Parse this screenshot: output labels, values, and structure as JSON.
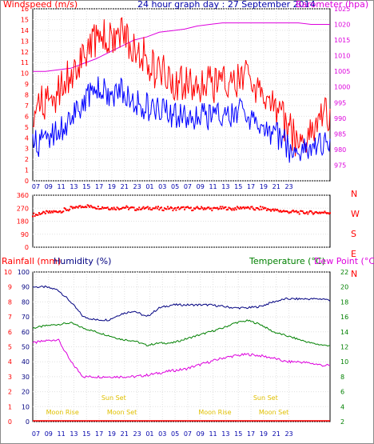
{
  "chart_data": [
    {
      "type": "line",
      "title": "24 hour graph day : 27 September 2014",
      "ylabel": "Windspeed (m/s)",
      "y2label": "Barometer (hpa)",
      "ylim": [
        0,
        16
      ],
      "y2lim": [
        970,
        1025
      ],
      "x_tick_labels": [
        "07",
        "09",
        "11",
        "13",
        "15",
        "17",
        "19",
        "21",
        "23",
        "01",
        "03",
        "05",
        "07",
        "09",
        "11",
        "13",
        "15",
        "17",
        "19",
        "21",
        "23"
      ],
      "y_tick_labels": [
        "0",
        "1",
        "2",
        "3",
        "4",
        "5",
        "6",
        "7",
        "8",
        "9",
        "10",
        "11",
        "12",
        "13",
        "14",
        "15",
        "16"
      ],
      "y2_tick_labels": [
        "975",
        "980",
        "985",
        "990",
        "995",
        "1000",
        "1005",
        "1010",
        "1015",
        "1020",
        "1025"
      ],
      "colors": {
        "gust": "#ff0000",
        "average": "#0000ff",
        "barometer": "#dd00dd"
      },
      "series": [
        {
          "key": "gust",
          "hours": [
            0,
            1,
            2,
            3,
            4,
            5,
            6,
            7,
            8,
            9,
            10,
            11,
            12,
            13,
            14,
            15,
            16,
            17,
            18,
            19,
            20,
            21,
            22,
            23,
            24,
            25,
            26,
            27,
            28,
            29,
            30,
            31,
            32,
            33,
            34,
            35,
            36,
            37,
            38,
            39,
            40,
            41,
            42,
            43,
            44,
            45,
            46,
            47
          ],
          "values": [
            6.5,
            7,
            7.5,
            7,
            8,
            9,
            10,
            10.5,
            11.5,
            12.5,
            13,
            13.5,
            13,
            13.5,
            14,
            13,
            12.5,
            12,
            11.5,
            10.5,
            10,
            10,
            9,
            9,
            9,
            9,
            9,
            9,
            9,
            9,
            9,
            9,
            9,
            9.5,
            9.5,
            9,
            8,
            7.5,
            7,
            6.5,
            5,
            4.5,
            3.5,
            3.5,
            4.5,
            5.5,
            6,
            6
          ]
        },
        {
          "key": "average",
          "hours": [
            0,
            1,
            2,
            3,
            4,
            5,
            6,
            7,
            8,
            9,
            10,
            11,
            12,
            13,
            14,
            15,
            16,
            17,
            18,
            19,
            20,
            21,
            22,
            23,
            24,
            25,
            26,
            27,
            28,
            29,
            30,
            31,
            32,
            33,
            34,
            35,
            36,
            37,
            38,
            39,
            40,
            41,
            42,
            43,
            44,
            45,
            46,
            47
          ],
          "values": [
            3.5,
            3.5,
            4,
            4,
            4.5,
            5,
            6,
            6.5,
            7,
            8,
            8.5,
            8.5,
            8,
            8,
            8.5,
            8,
            7.5,
            7,
            7,
            6.5,
            6.5,
            7,
            6,
            6,
            6,
            6,
            6,
            6,
            6,
            6,
            6,
            6,
            6,
            6.5,
            6,
            5.5,
            5,
            4.5,
            4.5,
            4,
            3.5,
            2.5,
            2.5,
            3,
            3,
            3,
            3.5,
            3.5
          ]
        },
        {
          "key": "barometer",
          "hours": [
            0,
            2,
            4,
            6,
            8,
            10,
            12,
            14,
            16,
            18,
            20,
            22,
            24,
            26,
            28,
            30,
            32,
            34,
            36,
            38,
            40,
            42,
            44,
            46,
            47
          ],
          "values": [
            1005,
            1005,
            1005.5,
            1006,
            1007.5,
            1009,
            1011,
            1013,
            1015,
            1016,
            1017.5,
            1018,
            1018.5,
            1019.5,
            1020,
            1020.5,
            1020.5,
            1020.5,
            1020.5,
            1020.5,
            1020.5,
            1020.5,
            1020,
            1020,
            1020
          ]
        }
      ]
    },
    {
      "type": "scatter",
      "ylabel_letters": [
        "N",
        "W",
        "S",
        "E",
        "N"
      ],
      "ylim": [
        0,
        360
      ],
      "y_tick_labels": [
        "0",
        "90",
        "180",
        "270",
        "360"
      ],
      "color": "#ff0000",
      "series": [
        {
          "key": "direction",
          "hours": [
            0,
            1,
            2,
            3,
            4,
            5,
            6,
            7,
            8,
            9,
            10,
            11,
            12,
            13,
            14,
            15,
            16,
            17,
            18,
            19,
            20,
            21,
            22,
            23,
            24,
            25,
            26,
            27,
            28,
            29,
            30,
            31,
            32,
            33,
            34,
            35,
            36,
            37,
            38,
            39,
            40,
            41,
            42,
            43,
            44,
            45,
            46,
            47
          ],
          "values": [
            225,
            235,
            240,
            245,
            250,
            260,
            270,
            280,
            285,
            280,
            275,
            275,
            270,
            270,
            275,
            270,
            265,
            270,
            270,
            270,
            265,
            270,
            265,
            270,
            270,
            265,
            270,
            270,
            265,
            270,
            270,
            265,
            270,
            275,
            270,
            265,
            270,
            260,
            255,
            250,
            245,
            245,
            240,
            240,
            240,
            240,
            240,
            240
          ]
        }
      ]
    },
    {
      "type": "line",
      "ylabel": "Rainfall (mm)",
      "ylabel2": "Humidity (%)",
      "y2label": "Temperature (°C)",
      "y2label2": "Dew Point (°C)",
      "ylim": [
        0,
        100
      ],
      "rain_ylim": [
        0,
        10
      ],
      "y2lim": [
        2,
        22
      ],
      "humidity_tick_labels": [
        "0",
        "10",
        "20",
        "30",
        "40",
        "50",
        "60",
        "70",
        "80",
        "90",
        "100"
      ],
      "rain_tick_labels": [
        "0",
        "1",
        "2",
        "3",
        "4",
        "5",
        "6",
        "7",
        "8",
        "9",
        "10"
      ],
      "temp_tick_labels": [
        "2",
        "4",
        "6",
        "8",
        "10",
        "12",
        "14",
        "16",
        "18",
        "20",
        "22"
      ],
      "colors": {
        "humidity": "#000080",
        "temperature": "#008000",
        "dewpoint": "#dd00dd",
        "rain": "#ff0000",
        "events": "#e0c000"
      },
      "series": [
        {
          "key": "humidity",
          "hours": [
            0,
            2,
            4,
            6,
            8,
            10,
            12,
            14,
            16,
            18,
            20,
            22,
            24,
            26,
            28,
            30,
            32,
            34,
            36,
            38,
            40,
            42,
            44,
            46,
            47
          ],
          "values": [
            90,
            90,
            88,
            80,
            70,
            68,
            68,
            72,
            74,
            70,
            76,
            78,
            78,
            78,
            78,
            77,
            76,
            76,
            77,
            80,
            82,
            82,
            82,
            82,
            81
          ]
        },
        {
          "key": "temperature",
          "hours": [
            0,
            2,
            4,
            6,
            8,
            10,
            12,
            14,
            16,
            18,
            20,
            22,
            24,
            26,
            28,
            30,
            32,
            34,
            36,
            38,
            40,
            42,
            44,
            46,
            47
          ],
          "values": [
            14.5,
            14.8,
            15.0,
            15.2,
            14.5,
            14.0,
            13.5,
            13.0,
            12.8,
            12.2,
            12.5,
            12.5,
            13.0,
            13.5,
            14.0,
            14.5,
            15.2,
            15.5,
            15.0,
            14.0,
            13.5,
            13.0,
            12.5,
            12.2,
            12.2
          ]
        },
        {
          "key": "dewpoint",
          "hours": [
            0,
            2,
            4,
            6,
            8,
            10,
            12,
            14,
            16,
            18,
            20,
            22,
            24,
            26,
            28,
            30,
            32,
            34,
            36,
            38,
            40,
            42,
            44,
            46,
            47
          ],
          "values": [
            12.5,
            12.8,
            13.0,
            10.0,
            8.0,
            8.0,
            8.0,
            8.0,
            8.0,
            8.2,
            8.5,
            8.8,
            9.0,
            9.5,
            10.0,
            10.5,
            10.8,
            11.0,
            10.8,
            10.5,
            10.0,
            10.0,
            9.8,
            9.5,
            9.5
          ]
        },
        {
          "key": "rain",
          "hours": [
            0,
            47
          ],
          "values": [
            0,
            0
          ]
        }
      ],
      "events": [
        {
          "label": "Moon Rise",
          "hour": 4.7,
          "row": 2
        },
        {
          "label": "Sun Set",
          "hour": 12.8,
          "row": 1
        },
        {
          "label": "Moon Set",
          "hour": 14.1,
          "row": 2
        },
        {
          "label": "Moon Rise",
          "hour": 28.8,
          "row": 2
        },
        {
          "label": "Sun Set",
          "hour": 36.8,
          "row": 1
        },
        {
          "label": "Moon Set",
          "hour": 38.1,
          "row": 2
        }
      ]
    }
  ]
}
